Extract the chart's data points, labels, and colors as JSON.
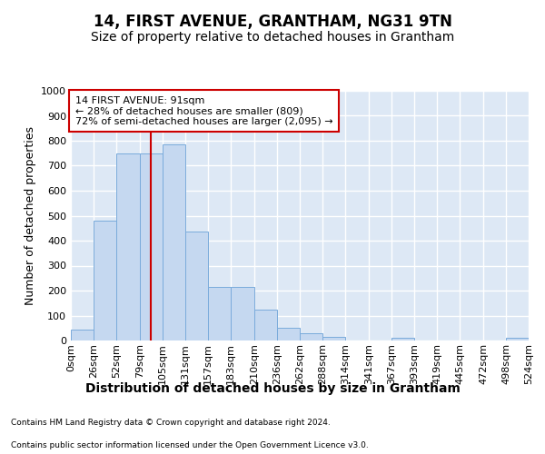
{
  "title": "14, FIRST AVENUE, GRANTHAM, NG31 9TN",
  "subtitle": "Size of property relative to detached houses in Grantham",
  "xlabel": "Distribution of detached houses by size in Grantham",
  "ylabel": "Number of detached properties",
  "bin_edges": [
    0,
    26,
    52,
    79,
    105,
    131,
    157,
    183,
    210,
    236,
    262,
    288,
    314,
    341,
    367,
    393,
    419,
    445,
    472,
    498,
    524
  ],
  "bar_heights": [
    42,
    480,
    750,
    750,
    785,
    435,
    215,
    215,
    125,
    50,
    30,
    15,
    0,
    0,
    10,
    0,
    0,
    0,
    0,
    10
  ],
  "bar_color": "#c5d8f0",
  "bar_edge_color": "#7aabdb",
  "red_line_x": 91,
  "ylim": [
    0,
    1000
  ],
  "yticks": [
    0,
    100,
    200,
    300,
    400,
    500,
    600,
    700,
    800,
    900,
    1000
  ],
  "annotation_text": "14 FIRST AVENUE: 91sqm\n← 28% of detached houses are smaller (809)\n72% of semi-detached houses are larger (2,095) →",
  "annotation_box_color": "#ffffff",
  "annotation_box_edge_color": "#cc0000",
  "footer_line1": "Contains HM Land Registry data © Crown copyright and database right 2024.",
  "footer_line2": "Contains public sector information licensed under the Open Government Licence v3.0.",
  "background_color": "#dde8f5",
  "plot_background": "#ffffff",
  "grid_color": "#ffffff",
  "title_fontsize": 12,
  "subtitle_fontsize": 10,
  "tick_label_fontsize": 8,
  "ylabel_fontsize": 9,
  "xlabel_fontsize": 10
}
